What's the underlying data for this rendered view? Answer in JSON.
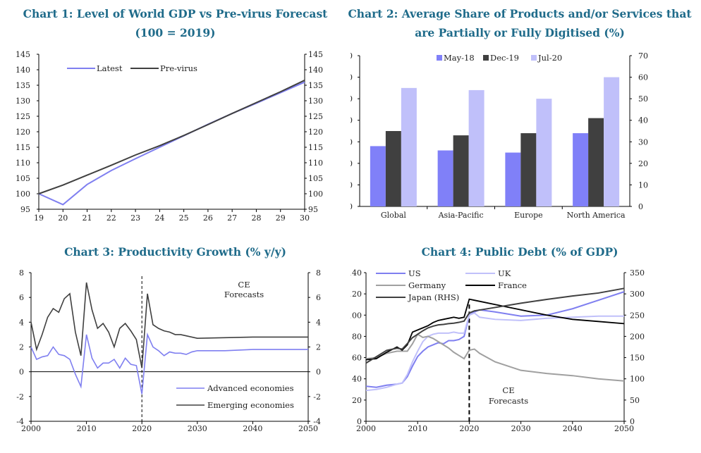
{
  "chart_data": [
    {
      "type": "line",
      "title_line1": "Chart 1: Level of World GDP vs Pre-virus Forecast",
      "title_line2": "(100 = 2019)",
      "x": [
        19,
        20,
        21,
        22,
        23,
        24,
        25,
        26,
        27,
        28,
        29,
        30
      ],
      "x_ticks": [
        "19",
        "20",
        "21",
        "22",
        "23",
        "24",
        "25",
        "26",
        "27",
        "28",
        "29",
        "30"
      ],
      "ylim": [
        95,
        145
      ],
      "y_ticks": [
        "95",
        "100",
        "105",
        "110",
        "115",
        "120",
        "125",
        "130",
        "135",
        "140",
        "145"
      ],
      "legend_placement": "top-left",
      "series": [
        {
          "name": "Latest",
          "color": "#7f7ff0",
          "values": [
            100,
            96.5,
            103,
            107.5,
            111.3,
            115,
            118.7,
            122.4,
            125.9,
            129.2,
            132.6,
            136
          ]
        },
        {
          "name": "Pre-virus",
          "color": "#404040",
          "values": [
            100,
            102.8,
            106,
            109.2,
            112.5,
            115.5,
            118.8,
            122.3,
            125.9,
            129.4,
            132.9,
            136.6
          ]
        }
      ]
    },
    {
      "type": "bar",
      "title_line1": "Chart 2: Average Share of Products and/or Services that",
      "title_line2": "are Partially or Fully Digitised (%)",
      "categories": [
        "Global",
        "Asia-Pacific",
        "Europe",
        "North America"
      ],
      "ylim": [
        0,
        70
      ],
      "y_ticks": [
        "0",
        "10",
        "20",
        "30",
        "40",
        "50",
        "60",
        "70"
      ],
      "legend_placement": "top-center",
      "series": [
        {
          "name": "May-18",
          "color": "#8080f8",
          "values": [
            28,
            26,
            25,
            34
          ]
        },
        {
          "name": "Dec-19",
          "color": "#404040",
          "values": [
            35,
            33,
            34,
            41
          ]
        },
        {
          "name": "Jul-20",
          "color": "#c0c0fa",
          "values": [
            55,
            54,
            50,
            60
          ]
        }
      ]
    },
    {
      "type": "line",
      "title": "Chart 3: Productivity Growth (% y/y)",
      "xlim": [
        2000,
        2050
      ],
      "x_ticks": [
        "2000",
        "2010",
        "2020",
        "2030",
        "2040",
        "2050"
      ],
      "ylim": [
        -4,
        8
      ],
      "y_ticks": [
        "-4",
        "-2",
        "0",
        "2",
        "4",
        "6",
        "8"
      ],
      "forecast_line_x": 2020,
      "annotation_line1": "CE",
      "annotation_line2": "Forecasts",
      "legend_placement": "bottom-center",
      "series": [
        {
          "name": "Advanced economies",
          "color": "#7f7ff0",
          "x": [
            2000,
            2001,
            2002,
            2003,
            2004,
            2005,
            2006,
            2007,
            2008,
            2009,
            2010,
            2011,
            2012,
            2013,
            2014,
            2015,
            2016,
            2017,
            2018,
            2019,
            2020,
            2021,
            2022,
            2023,
            2024,
            2025,
            2026,
            2027,
            2028,
            2029,
            2030,
            2035,
            2040,
            2045,
            2050
          ],
          "values": [
            2.0,
            1.0,
            1.2,
            1.3,
            2.0,
            1.4,
            1.3,
            1.0,
            -0.2,
            -1.2,
            3.0,
            1.1,
            0.3,
            0.7,
            0.7,
            1.0,
            0.3,
            1.1,
            0.6,
            0.5,
            -1.8,
            3.0,
            2.0,
            1.7,
            1.3,
            1.6,
            1.5,
            1.5,
            1.4,
            1.6,
            1.7,
            1.7,
            1.8,
            1.8,
            1.8
          ]
        },
        {
          "name": "Emerging economies",
          "color": "#404040",
          "x": [
            2000,
            2001,
            2002,
            2003,
            2004,
            2005,
            2006,
            2007,
            2008,
            2009,
            2010,
            2011,
            2012,
            2013,
            2014,
            2015,
            2016,
            2017,
            2018,
            2019,
            2020,
            2021,
            2022,
            2023,
            2024,
            2025,
            2026,
            2027,
            2028,
            2029,
            2030,
            2035,
            2040,
            2045,
            2050
          ],
          "values": [
            4.0,
            1.8,
            3.0,
            4.4,
            5.1,
            4.8,
            5.9,
            6.3,
            3.2,
            1.3,
            7.2,
            5.0,
            3.5,
            3.9,
            3.2,
            2.0,
            3.5,
            3.9,
            3.3,
            2.6,
            0.3,
            6.3,
            3.8,
            3.5,
            3.3,
            3.2,
            3.0,
            3.0,
            2.9,
            2.8,
            2.7,
            2.75,
            2.8,
            2.8,
            2.8
          ]
        }
      ]
    },
    {
      "type": "line",
      "title": "Chart 4: Public Debt (% of GDP)",
      "xlim": [
        2000,
        2050
      ],
      "x_ticks": [
        "2000",
        "2010",
        "2020",
        "2030",
        "2040",
        "2050"
      ],
      "ylim_left": [
        0,
        140
      ],
      "y_ticks_left": [
        "0",
        "20",
        "40",
        "60",
        "80",
        "100",
        "120",
        "140"
      ],
      "ylim_right": [
        0,
        350
      ],
      "y_ticks_right": [
        "0",
        "50",
        "100",
        "150",
        "200",
        "250",
        "300",
        "350"
      ],
      "forecast_line_x": 2020,
      "annotation_line1": "CE",
      "annotation_line2": "Forecasts",
      "legend_placement": "top-left",
      "series": [
        {
          "name": "US",
          "color": "#7f7ff0",
          "axis": "left",
          "x": [
            2000,
            2002,
            2004,
            2006,
            2007,
            2008,
            2009,
            2010,
            2011,
            2012,
            2013,
            2014,
            2015,
            2016,
            2017,
            2018,
            2019,
            2020,
            2021,
            2022,
            2025,
            2030,
            2035,
            2040,
            2045,
            2050
          ],
          "values": [
            33,
            32,
            34,
            35,
            36,
            42,
            52,
            61,
            66,
            70,
            72,
            74,
            73,
            76,
            76,
            77,
            80,
            100,
            103,
            105,
            103,
            99,
            100,
            106,
            114,
            122
          ]
        },
        {
          "name": "UK",
          "color": "#c0c0fa",
          "axis": "left",
          "x": [
            2000,
            2002,
            2004,
            2006,
            2007,
            2008,
            2009,
            2010,
            2011,
            2012,
            2013,
            2014,
            2015,
            2016,
            2017,
            2018,
            2019,
            2020,
            2021,
            2022,
            2025,
            2030,
            2035,
            2040,
            2045,
            2050
          ],
          "values": [
            29,
            30,
            32,
            35,
            36,
            44,
            56,
            66,
            75,
            80,
            82,
            83,
            83,
            83,
            84,
            83,
            83,
            100,
            102,
            98,
            96,
            95,
            97,
            98,
            99,
            99
          ]
        },
        {
          "name": "Germany",
          "color": "#a0a0a0",
          "axis": "left",
          "x": [
            2000,
            2002,
            2004,
            2006,
            2008,
            2009,
            2010,
            2011,
            2012,
            2013,
            2014,
            2015,
            2016,
            2017,
            2018,
            2019,
            2020,
            2021,
            2022,
            2025,
            2030,
            2035,
            2040,
            2045,
            2050
          ],
          "values": [
            59,
            60,
            64,
            66,
            66,
            73,
            82,
            79,
            80,
            78,
            75,
            72,
            69,
            65,
            62,
            59,
            67,
            68,
            64,
            56,
            48,
            45,
            43,
            40,
            38
          ]
        },
        {
          "name": "France",
          "color": "#000000",
          "axis": "left",
          "x": [
            2000,
            2002,
            2004,
            2006,
            2007,
            2008,
            2009,
            2010,
            2011,
            2012,
            2013,
            2014,
            2015,
            2016,
            2017,
            2018,
            2019,
            2020,
            2021,
            2022,
            2025,
            2030,
            2035,
            2040,
            2045,
            2050
          ],
          "values": [
            58,
            59,
            65,
            70,
            67,
            72,
            84,
            86,
            88,
            90,
            93,
            95,
            96,
            97,
            98,
            97,
            98,
            115,
            114,
            113,
            110,
            105,
            100,
            96,
            94,
            92
          ]
        },
        {
          "name": "Japan (RHS)",
          "color": "#404040",
          "axis": "right",
          "x": [
            2000,
            2002,
            2004,
            2006,
            2007,
            2008,
            2009,
            2010,
            2011,
            2012,
            2013,
            2014,
            2015,
            2016,
            2017,
            2018,
            2019,
            2020,
            2021,
            2022,
            2025,
            2030,
            2035,
            2040,
            2045,
            2050
          ],
          "values": [
            137,
            152,
            167,
            172,
            170,
            183,
            197,
            205,
            213,
            220,
            224,
            227,
            228,
            230,
            231,
            233,
            236,
            255,
            260,
            262,
            268,
            278,
            287,
            295,
            302,
            313
          ]
        }
      ]
    }
  ]
}
